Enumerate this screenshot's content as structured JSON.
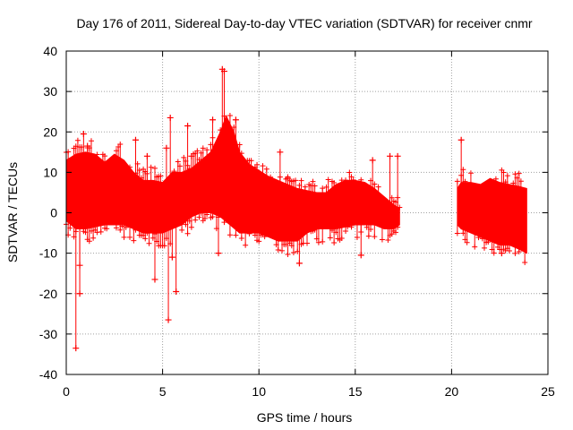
{
  "chart_data": {
    "type": "scatter",
    "title": "Day 176 of 2011, Sidereal Day-to-day VTEC variation (SDTVAR) for receiver cnmr",
    "xlabel": "GPS time / hours",
    "ylabel": "SDTVAR / TECUs",
    "xlim": [
      0,
      25
    ],
    "ylim": [
      -40,
      40
    ],
    "xticks": [
      0,
      5,
      10,
      15,
      20,
      25
    ],
    "yticks": [
      -40,
      -30,
      -20,
      -10,
      0,
      10,
      20,
      30,
      40
    ],
    "grid": true,
    "marker": "+",
    "series": [
      {
        "name": "SDTVAR",
        "color": "#ff0000",
        "band_upper": [
          [
            0.0,
            13
          ],
          [
            0.5,
            14.5
          ],
          [
            1.0,
            15
          ],
          [
            1.5,
            14.5
          ],
          [
            2.0,
            12.5
          ],
          [
            2.5,
            14.5
          ],
          [
            3.0,
            13
          ],
          [
            3.5,
            10
          ],
          [
            4.0,
            8
          ],
          [
            4.5,
            8
          ],
          [
            5.0,
            7.5
          ],
          [
            5.5,
            10
          ],
          [
            6.0,
            10
          ],
          [
            6.5,
            11
          ],
          [
            7.0,
            13
          ],
          [
            7.5,
            15
          ],
          [
            8.0,
            20
          ],
          [
            8.3,
            24
          ],
          [
            8.7,
            20
          ],
          [
            9.0,
            15
          ],
          [
            9.5,
            12
          ],
          [
            10.0,
            10.5
          ],
          [
            10.5,
            9
          ],
          [
            11.0,
            8
          ],
          [
            11.5,
            7
          ],
          [
            12.0,
            6
          ],
          [
            12.5,
            5.5
          ],
          [
            13.0,
            5
          ],
          [
            13.5,
            5
          ],
          [
            14.0,
            7
          ],
          [
            14.5,
            8
          ],
          [
            15.0,
            8
          ],
          [
            15.5,
            7.5
          ],
          [
            16.0,
            6
          ],
          [
            16.5,
            4
          ],
          [
            17.0,
            2
          ],
          [
            17.3,
            1
          ]
        ],
        "band_lower": [
          [
            0.0,
            -2
          ],
          [
            0.5,
            -4
          ],
          [
            1.0,
            -4
          ],
          [
            1.5,
            -3.5
          ],
          [
            2.0,
            -3
          ],
          [
            2.5,
            -3
          ],
          [
            3.0,
            -3
          ],
          [
            3.5,
            -4
          ],
          [
            4.0,
            -5
          ],
          [
            4.5,
            -5
          ],
          [
            5.0,
            -5
          ],
          [
            5.5,
            -4
          ],
          [
            6.0,
            -3
          ],
          [
            6.5,
            -1
          ],
          [
            7.0,
            0
          ],
          [
            7.5,
            0
          ],
          [
            8.0,
            -1
          ],
          [
            8.5,
            -3
          ],
          [
            9.0,
            -5
          ],
          [
            9.5,
            -5
          ],
          [
            10.0,
            -5
          ],
          [
            10.5,
            -6
          ],
          [
            11.0,
            -7
          ],
          [
            11.5,
            -7
          ],
          [
            12.0,
            -7
          ],
          [
            12.5,
            -5
          ],
          [
            13.0,
            -4
          ],
          [
            13.5,
            -4
          ],
          [
            14.0,
            -4
          ],
          [
            14.5,
            -3.5
          ],
          [
            15.0,
            -3
          ],
          [
            15.5,
            -3
          ],
          [
            16.0,
            -3
          ],
          [
            16.5,
            -4
          ],
          [
            17.0,
            -4
          ],
          [
            17.3,
            -3
          ]
        ],
        "band2_upper": [
          [
            20.3,
            6
          ],
          [
            20.5,
            7.5
          ],
          [
            21.0,
            7.5
          ],
          [
            21.5,
            7
          ],
          [
            22.0,
            8.5
          ],
          [
            22.5,
            7.5
          ],
          [
            23.0,
            7
          ],
          [
            23.5,
            6.5
          ],
          [
            23.9,
            6
          ]
        ],
        "band2_lower": [
          [
            20.3,
            -3
          ],
          [
            20.5,
            -4
          ],
          [
            21.0,
            -5
          ],
          [
            21.5,
            -6
          ],
          [
            22.0,
            -7
          ],
          [
            22.5,
            -8
          ],
          [
            23.0,
            -8
          ],
          [
            23.5,
            -9
          ],
          [
            23.9,
            -10
          ]
        ],
        "outliers": [
          [
            0.5,
            -33.5
          ],
          [
            0.7,
            -20
          ],
          [
            0.9,
            19.5
          ],
          [
            0.7,
            -13
          ],
          [
            4.6,
            -16.5
          ],
          [
            5.4,
            23.5
          ],
          [
            5.5,
            -11
          ],
          [
            5.7,
            -19.5
          ],
          [
            5.3,
            -26.5
          ],
          [
            6.3,
            21.5
          ],
          [
            6.5,
            14
          ],
          [
            7.6,
            23
          ],
          [
            8.1,
            35.5
          ],
          [
            8.2,
            35
          ],
          [
            8.8,
            23
          ],
          [
            7.9,
            -10
          ],
          [
            11.1,
            15
          ],
          [
            12.1,
            -12.5
          ],
          [
            11.5,
            8.5
          ],
          [
            15.3,
            -10.5
          ],
          [
            16.8,
            14
          ],
          [
            17.2,
            14
          ],
          [
            4.2,
            14
          ],
          [
            3.6,
            18
          ],
          [
            15.9,
            13
          ],
          [
            20.5,
            18
          ],
          [
            22.6,
            -10
          ],
          [
            5.2,
            16
          ],
          [
            1.1,
            16.5
          ]
        ]
      }
    ]
  }
}
